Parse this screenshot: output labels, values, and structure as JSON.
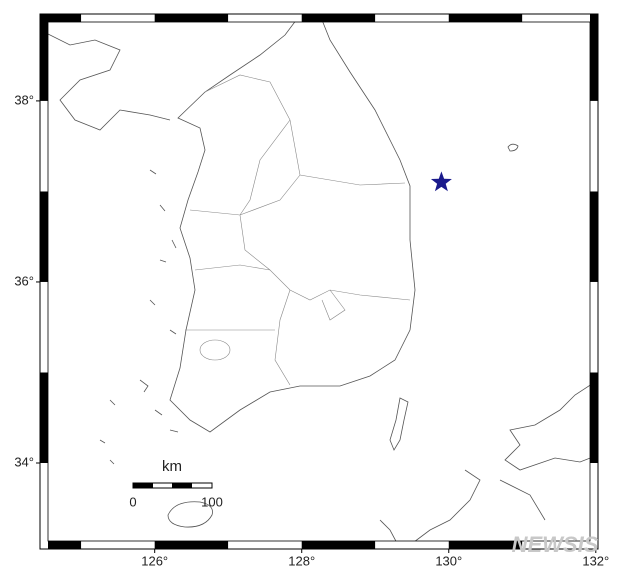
{
  "map": {
    "lonlim": [
      124.44,
      132.03
    ],
    "latlim": [
      33.05,
      38.96
    ],
    "lon_ticks": [
      {
        "value": 126,
        "label": "126°"
      },
      {
        "value": 128,
        "label": "128°"
      },
      {
        "value": 130,
        "label": "130°"
      },
      {
        "value": 132,
        "label": "132°"
      }
    ],
    "lat_ticks": [
      {
        "value": 34,
        "label": "34°"
      },
      {
        "value": 36,
        "label": "36°"
      },
      {
        "value": 38,
        "label": "38°"
      }
    ],
    "epicenter": {
      "lon": 129.9,
      "lat": 37.1,
      "color": "#1a1a8c"
    },
    "scale_bar": {
      "unit": "km",
      "labels": [
        "0",
        "100"
      ]
    },
    "watermark": "NEWSIS"
  }
}
